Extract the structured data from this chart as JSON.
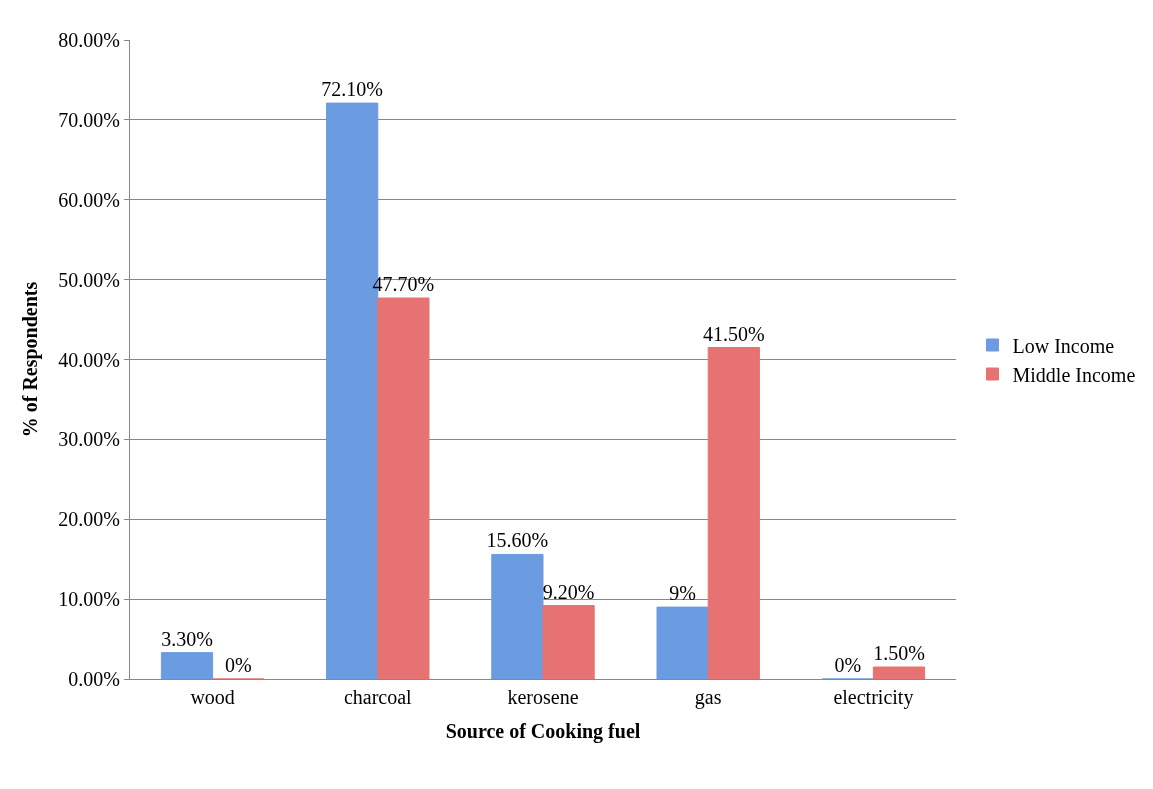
{
  "chart_data": {
    "type": "bar",
    "xlabel": "Source of Cooking fuel",
    "ylabel": "% of Respondents",
    "categories": [
      "wood",
      "charcoal",
      "kerosene",
      "gas",
      "electricity"
    ],
    "series": [
      {
        "name": "Low Income",
        "color": "#6b9be0",
        "values": [
          3.3,
          72.1,
          15.6,
          9,
          0
        ],
        "value_labels": [
          "3.30%",
          "72.10%",
          "15.60%",
          "9%",
          "0%"
        ]
      },
      {
        "name": "Middle Income",
        "color": "#e77272",
        "values": [
          0,
          47.7,
          9.2,
          41.5,
          1.5
        ],
        "value_labels": [
          "0%",
          "47.70%",
          "9.20%",
          "41.50%",
          "1.50%"
        ]
      }
    ],
    "ylim": [
      0,
      80
    ],
    "yticks": [
      {
        "value": 0,
        "label": "0.00%"
      },
      {
        "value": 10,
        "label": "10.00%"
      },
      {
        "value": 20,
        "label": "20.00%"
      },
      {
        "value": 30,
        "label": "30.00%"
      },
      {
        "value": 40,
        "label": "40.00%"
      },
      {
        "value": 50,
        "label": "50.00%"
      },
      {
        "value": 60,
        "label": "60.00%"
      },
      {
        "value": 70,
        "label": "70.00%"
      },
      {
        "value": 80,
        "label": "80.00%"
      }
    ],
    "grid": "y",
    "legend": "right"
  }
}
